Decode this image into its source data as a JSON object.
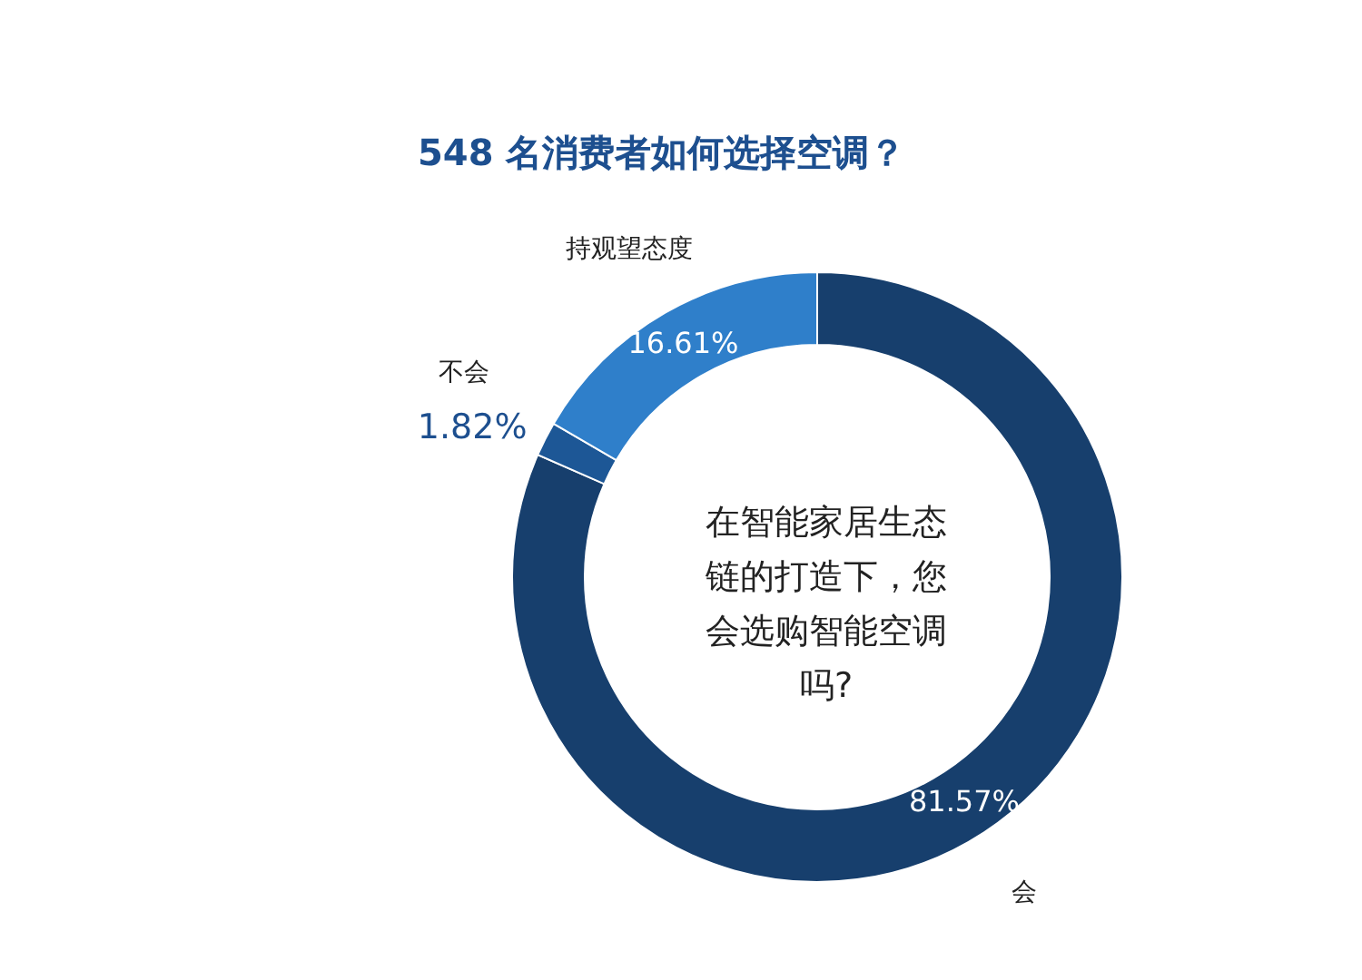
{
  "chart_data": {
    "type": "donut",
    "title": "548 名消费者如何选择空调？",
    "categories": [
      "会",
      "不会",
      "持观望态度"
    ],
    "values": [
      81.57,
      1.82,
      16.61
    ],
    "colors": [
      "#173f6d",
      "#1d5796",
      "#2f7fca"
    ],
    "value_labels": [
      "81.57%",
      "1.82%",
      "16.61%"
    ],
    "annotations": [
      "在智能家居生态链的打造下，您会选购智能空调吗?"
    ],
    "legend": false
  }
}
